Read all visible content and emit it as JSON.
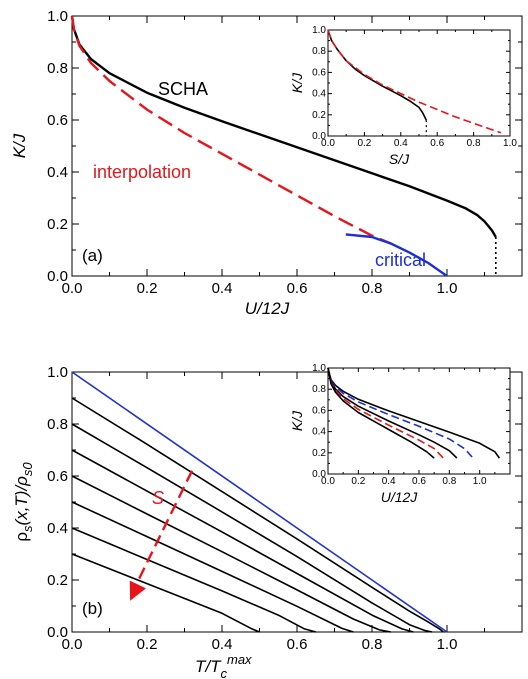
{
  "colors": {
    "black": "#000000",
    "red": "#e8141c",
    "blue": "#1a2fd6",
    "rho_top": "#2233cc"
  },
  "chart_data": [
    {
      "id": "panel-a",
      "type": "line",
      "panel_label": "(a)",
      "xlabel": "U/12J",
      "ylabel": "K/J",
      "xlim": [
        0,
        1.2
      ],
      "ylim": [
        0,
        1.0
      ],
      "xticks": [
        "0.0",
        "0.2",
        "0.4",
        "0.6",
        "0.8",
        "1.0"
      ],
      "yticks": [
        "0.0",
        "0.2",
        "0.4",
        "0.6",
        "0.8",
        "1.0"
      ],
      "annotations": [
        {
          "key": "scha",
          "text": "SCHA",
          "color": "#000000"
        },
        {
          "key": "interp",
          "text": "interpolation",
          "color": "#e8141c"
        },
        {
          "key": "critical",
          "text": "critical",
          "color": "#1a2fd6"
        }
      ],
      "series": [
        {
          "key": "scha",
          "style": "solid",
          "color": "#000000",
          "x": [
            0,
            0.005,
            0.02,
            0.05,
            0.1,
            0.2,
            0.3,
            0.4,
            0.5,
            0.6,
            0.7,
            0.8,
            0.9,
            1.0,
            1.05,
            1.08,
            1.1,
            1.12,
            1.13
          ],
          "y": [
            1.0,
            0.95,
            0.89,
            0.835,
            0.78,
            0.705,
            0.647,
            0.595,
            0.545,
            0.495,
            0.445,
            0.395,
            0.345,
            0.29,
            0.26,
            0.235,
            0.21,
            0.175,
            0.15
          ]
        },
        {
          "key": "scha-drop",
          "style": "dotted",
          "color": "#000000",
          "x": [
            1.13,
            1.13
          ],
          "y": [
            0.15,
            0.0
          ]
        },
        {
          "key": "interp",
          "style": "dashed",
          "color": "#e8141c",
          "x": [
            0,
            0.005,
            0.02,
            0.05,
            0.1,
            0.2,
            0.3,
            0.4,
            0.5,
            0.6,
            0.7,
            0.8,
            0.85
          ],
          "y": [
            1.0,
            0.95,
            0.885,
            0.82,
            0.75,
            0.64,
            0.55,
            0.47,
            0.39,
            0.31,
            0.23,
            0.155,
            0.125
          ]
        },
        {
          "key": "critical",
          "style": "solid",
          "color": "#1a2fd6",
          "x": [
            0.73,
            0.8,
            0.85,
            0.9,
            0.95,
            0.98,
            1.0
          ],
          "y": [
            0.16,
            0.15,
            0.125,
            0.09,
            0.05,
            0.02,
            0.0
          ]
        }
      ]
    },
    {
      "id": "panel-a-inset",
      "type": "line",
      "xlabel": "S/J",
      "ylabel": "K/J",
      "xlim": [
        0,
        1.0
      ],
      "ylim": [
        0,
        1.0
      ],
      "xticks": [
        "0.0",
        "0.2",
        "0.4",
        "0.6",
        "0.8",
        "1.0"
      ],
      "yticks": [
        "0.0",
        "0.2",
        "0.4",
        "0.6",
        "0.8",
        "1.0"
      ],
      "series": [
        {
          "key": "inset-scha",
          "style": "solid",
          "color": "#000000",
          "x": [
            0,
            0.02,
            0.05,
            0.1,
            0.15,
            0.2,
            0.3,
            0.4,
            0.45,
            0.5,
            0.52,
            0.54
          ],
          "y": [
            1.0,
            0.9,
            0.82,
            0.71,
            0.63,
            0.57,
            0.47,
            0.38,
            0.33,
            0.27,
            0.22,
            0.15
          ]
        },
        {
          "key": "inset-drop",
          "style": "dotted",
          "color": "#000000",
          "x": [
            0.54,
            0.54
          ],
          "y": [
            0.15,
            0.0
          ]
        },
        {
          "key": "inset-interp",
          "style": "dashed",
          "color": "#e8141c",
          "x": [
            0,
            0.02,
            0.05,
            0.1,
            0.2,
            0.3,
            0.4,
            0.5,
            0.6,
            0.7,
            0.8,
            0.9,
            0.95
          ],
          "y": [
            1.0,
            0.9,
            0.82,
            0.71,
            0.58,
            0.48,
            0.4,
            0.32,
            0.25,
            0.18,
            0.12,
            0.06,
            0.03
          ]
        }
      ]
    },
    {
      "id": "panel-b",
      "type": "line",
      "panel_label": "(b)",
      "xlabel_main": "T/T",
      "xlabel_sub": "c",
      "xlabel_sup": "max",
      "ylabel_main": "ρ",
      "ylabel_sub1": "s",
      "ylabel_mid": "(x,T)/ρ",
      "ylabel_sub2": "s0",
      "xlim": [
        0,
        1.2
      ],
      "ylim": [
        0,
        1.0
      ],
      "xticks": [
        "0.0",
        "0.2",
        "0.4",
        "0.6",
        "0.8",
        "1.0"
      ],
      "yticks": [
        "0.0",
        "0.2",
        "0.4",
        "0.6",
        "0.8",
        "1.0"
      ],
      "arrow_label": "S",
      "arrow": {
        "from": [
          0.32,
          0.62
        ],
        "to": [
          0.155,
          0.12
        ]
      },
      "series": [
        {
          "key": "rho-1",
          "color": "#2233cc",
          "x": [
            0,
            1.0
          ],
          "y": [
            1.0,
            0.0
          ]
        },
        {
          "key": "rho-2",
          "color": "#000000",
          "x": [
            0,
            0.18,
            0.4,
            0.6,
            0.8,
            0.9,
            0.95,
            0.98,
            0.99
          ],
          "y": [
            0.9,
            0.74,
            0.54,
            0.358,
            0.172,
            0.08,
            0.038,
            0.012,
            0.0
          ]
        },
        {
          "key": "rho-3",
          "color": "#000000",
          "x": [
            0,
            0.2,
            0.4,
            0.6,
            0.8,
            0.9,
            0.94,
            0.96
          ],
          "y": [
            0.8,
            0.632,
            0.462,
            0.29,
            0.112,
            0.028,
            0.006,
            0.0
          ]
        },
        {
          "key": "rho-4",
          "color": "#000000",
          "x": [
            0,
            0.2,
            0.4,
            0.6,
            0.8,
            0.88,
            0.91
          ],
          "y": [
            0.7,
            0.542,
            0.385,
            0.225,
            0.065,
            0.012,
            0.0
          ]
        },
        {
          "key": "rho-5",
          "color": "#000000",
          "x": [
            0,
            0.2,
            0.4,
            0.6,
            0.75,
            0.82,
            0.85
          ],
          "y": [
            0.6,
            0.454,
            0.309,
            0.162,
            0.05,
            0.008,
            0.0
          ]
        },
        {
          "key": "rho-6",
          "color": "#000000",
          "x": [
            0,
            0.2,
            0.4,
            0.6,
            0.72,
            0.75
          ],
          "y": [
            0.5,
            0.367,
            0.233,
            0.099,
            0.014,
            0.0
          ]
        },
        {
          "key": "rho-7",
          "color": "#000000",
          "x": [
            0,
            0.2,
            0.4,
            0.55,
            0.62,
            0.65
          ],
          "y": [
            0.4,
            0.279,
            0.158,
            0.065,
            0.012,
            0.0
          ]
        },
        {
          "key": "rho-8",
          "color": "#000000",
          "x": [
            0,
            0.2,
            0.4,
            0.48,
            0.5
          ],
          "y": [
            0.3,
            0.186,
            0.072,
            0.012,
            0.0
          ]
        }
      ]
    },
    {
      "id": "panel-b-inset",
      "type": "line",
      "xlabel": "U/12J",
      "ylabel": "K/J",
      "xlim": [
        0,
        1.2
      ],
      "ylim": [
        0,
        1.0
      ],
      "xticks": [
        "0.0",
        "0.2",
        "0.4",
        "0.6",
        "0.8",
        "1.0"
      ],
      "yticks": [
        "0.0",
        "0.2",
        "0.4",
        "0.6",
        "0.8",
        "1.0"
      ],
      "series": [
        {
          "key": "ib-1",
          "style": "solid",
          "color": "#000000",
          "x": [
            0,
            0.02,
            0.05,
            0.1,
            0.2,
            0.4,
            0.6,
            0.8,
            1.0,
            1.1,
            1.13
          ],
          "y": [
            1.0,
            0.89,
            0.835,
            0.78,
            0.705,
            0.595,
            0.495,
            0.395,
            0.29,
            0.21,
            0.15
          ]
        },
        {
          "key": "ib-2",
          "style": "dashed",
          "color": "#1a2fd6",
          "x": [
            0,
            0.02,
            0.05,
            0.1,
            0.2,
            0.4,
            0.6,
            0.8,
            0.9,
            0.95
          ],
          "y": [
            1.0,
            0.88,
            0.82,
            0.76,
            0.68,
            0.56,
            0.45,
            0.33,
            0.24,
            0.16
          ]
        },
        {
          "key": "ib-3",
          "style": "solid",
          "color": "#000000",
          "x": [
            0,
            0.02,
            0.05,
            0.1,
            0.2,
            0.4,
            0.6,
            0.7,
            0.8,
            0.85
          ],
          "y": [
            1.0,
            0.87,
            0.8,
            0.73,
            0.64,
            0.5,
            0.37,
            0.3,
            0.22,
            0.15
          ]
        },
        {
          "key": "ib-4",
          "style": "dashed",
          "color": "#e8141c",
          "x": [
            0,
            0.02,
            0.05,
            0.1,
            0.2,
            0.4,
            0.6,
            0.7,
            0.76
          ],
          "y": [
            1.0,
            0.86,
            0.79,
            0.71,
            0.61,
            0.46,
            0.32,
            0.24,
            0.15
          ]
        },
        {
          "key": "ib-5",
          "style": "solid",
          "color": "#000000",
          "x": [
            0,
            0.02,
            0.05,
            0.1,
            0.2,
            0.4,
            0.55,
            0.65,
            0.7
          ],
          "y": [
            1.0,
            0.85,
            0.77,
            0.69,
            0.58,
            0.42,
            0.3,
            0.21,
            0.15
          ]
        }
      ]
    }
  ]
}
